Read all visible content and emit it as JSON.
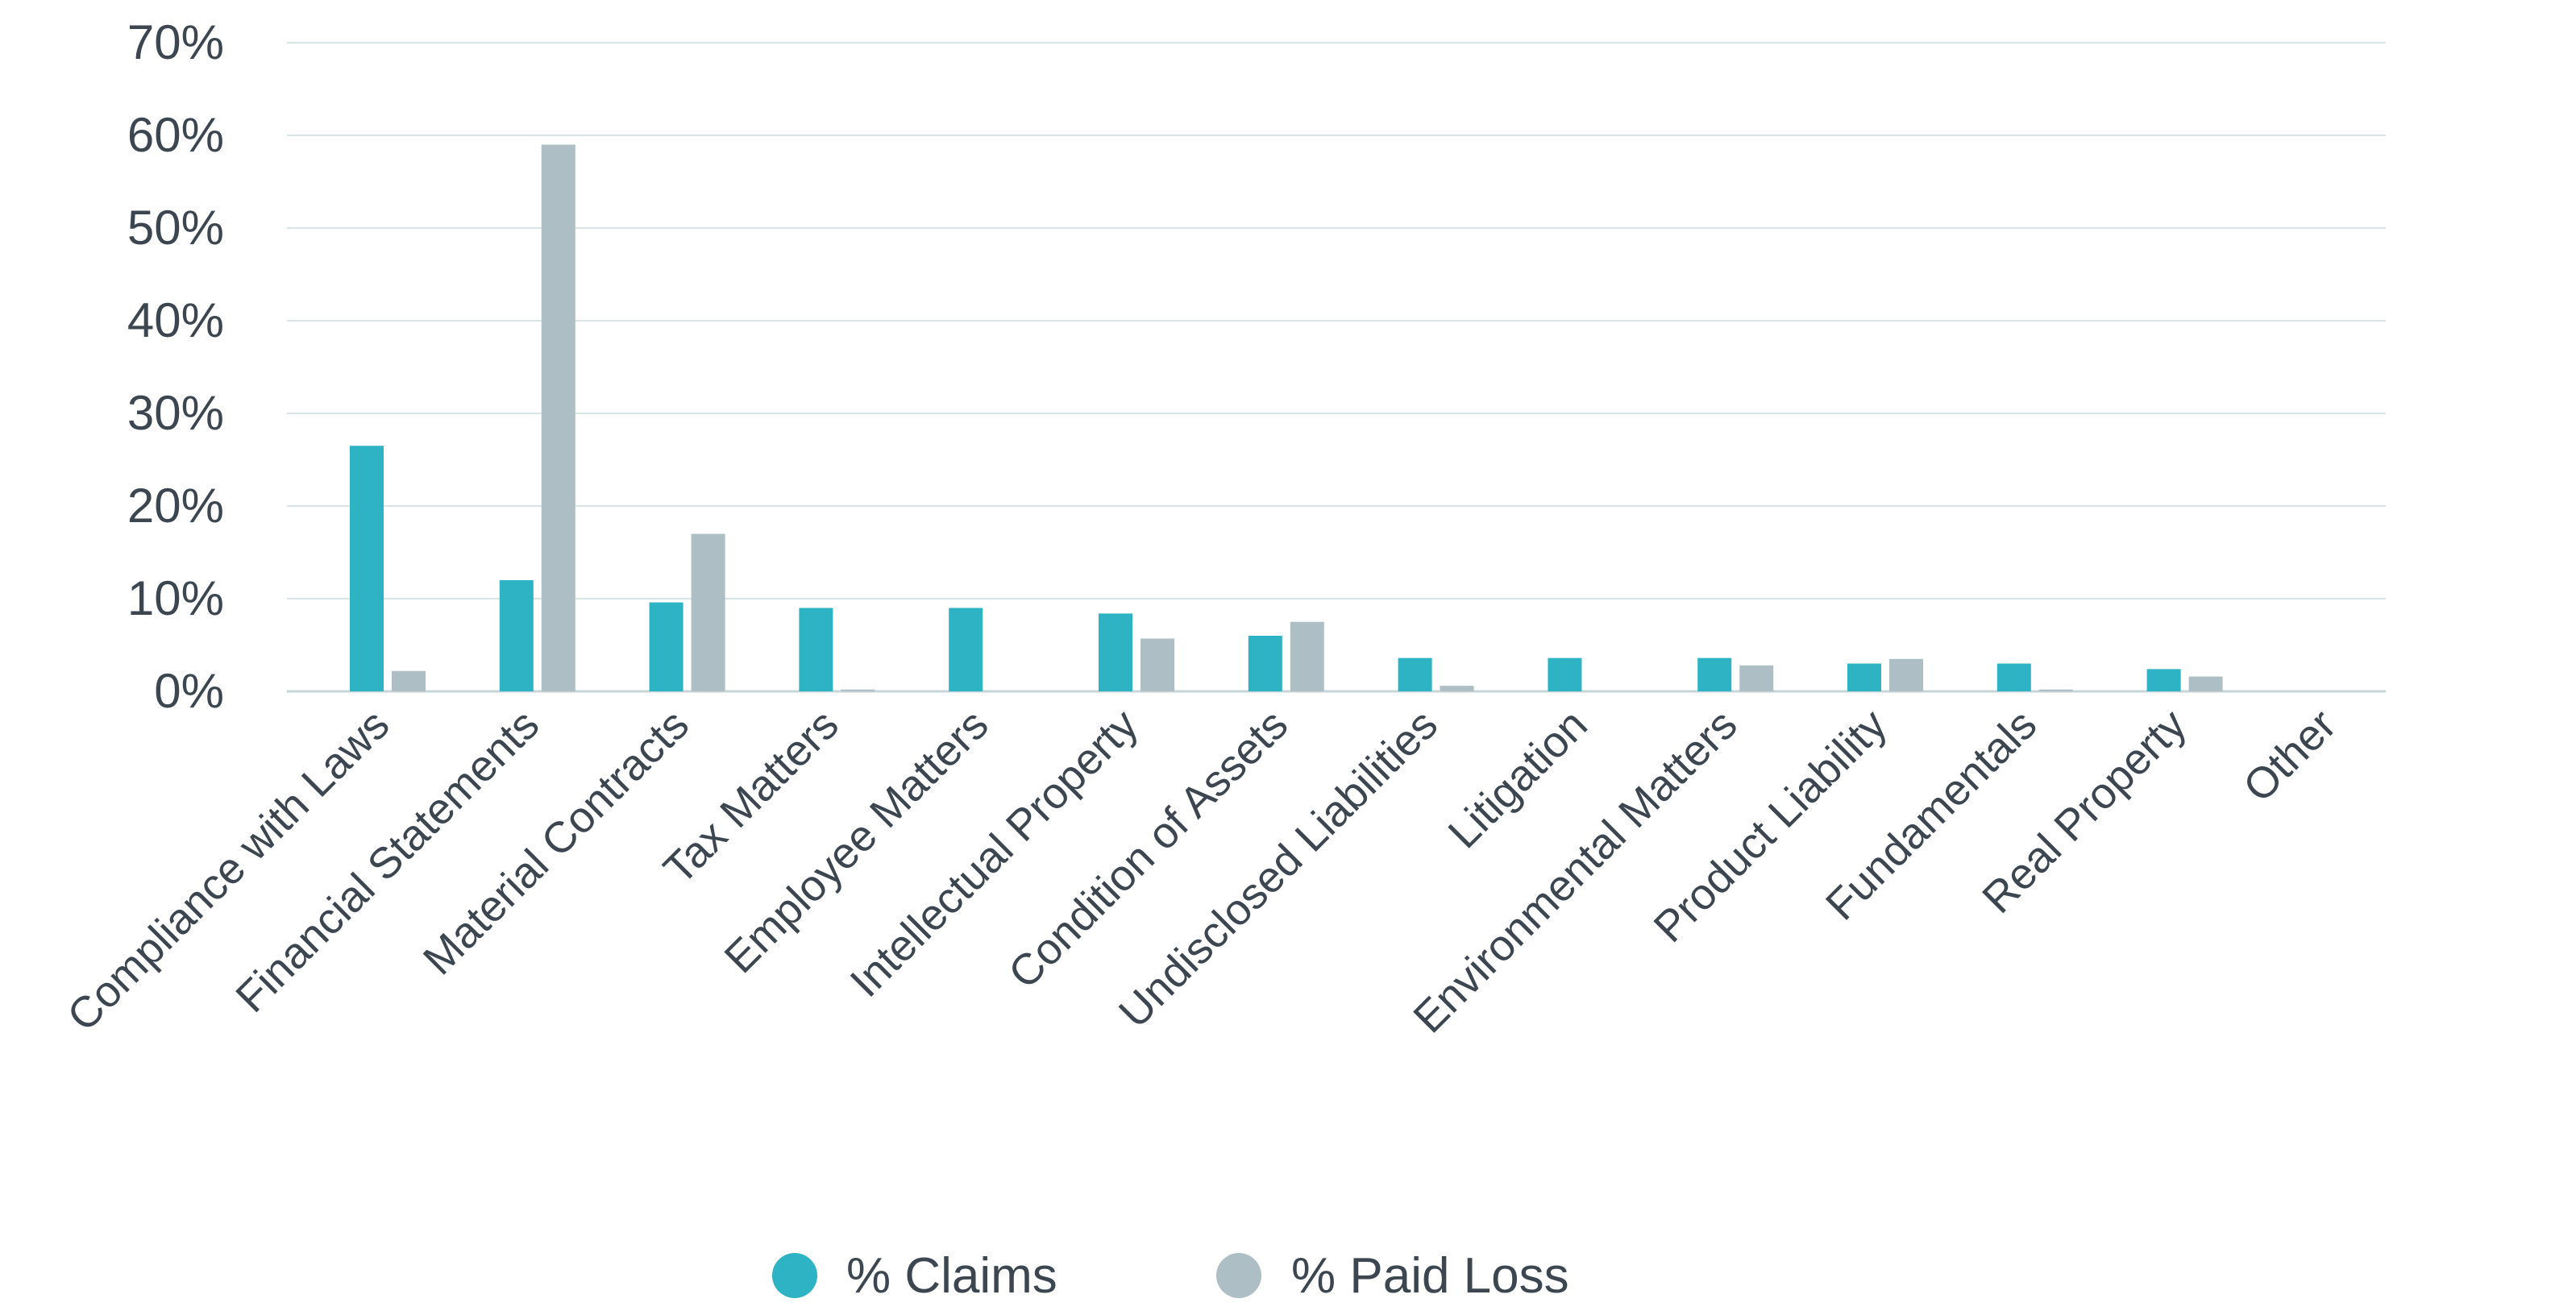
{
  "chart_data": {
    "type": "bar",
    "title": "",
    "xlabel": "",
    "ylabel": "",
    "ylim": [
      0,
      70
    ],
    "ytick_step": 10,
    "ytick_format": "{v}%",
    "grid": true,
    "legend_position": "bottom-center",
    "categories": [
      "Compliance with Laws",
      "Financial Statements",
      "Material Contracts",
      "Tax Matters",
      "Employee Matters",
      "Intellectual Property",
      "Condition of Assets",
      "Undisclosed Liabilities",
      "Litigation",
      "Environmental Matters",
      "Product Liability",
      "Fundamentals",
      "Real Property",
      "Other"
    ],
    "series": [
      {
        "name": "% Claims",
        "color": "#2db3c4",
        "values": [
          26.5,
          12.0,
          9.6,
          9.0,
          9.0,
          8.4,
          6.0,
          3.6,
          3.6,
          3.6,
          3.0,
          3.0,
          2.4,
          0
        ]
      },
      {
        "name": "% Paid Loss",
        "color": "#adbfc4",
        "values": [
          2.2,
          59.0,
          17.0,
          0.2,
          0,
          5.7,
          7.5,
          0.6,
          0,
          2.8,
          3.5,
          0.2,
          1.6,
          0
        ]
      }
    ]
  },
  "colors": {
    "grid": "#d9e4e6",
    "axis": "#c7d5d8",
    "text": "#3c4650"
  }
}
